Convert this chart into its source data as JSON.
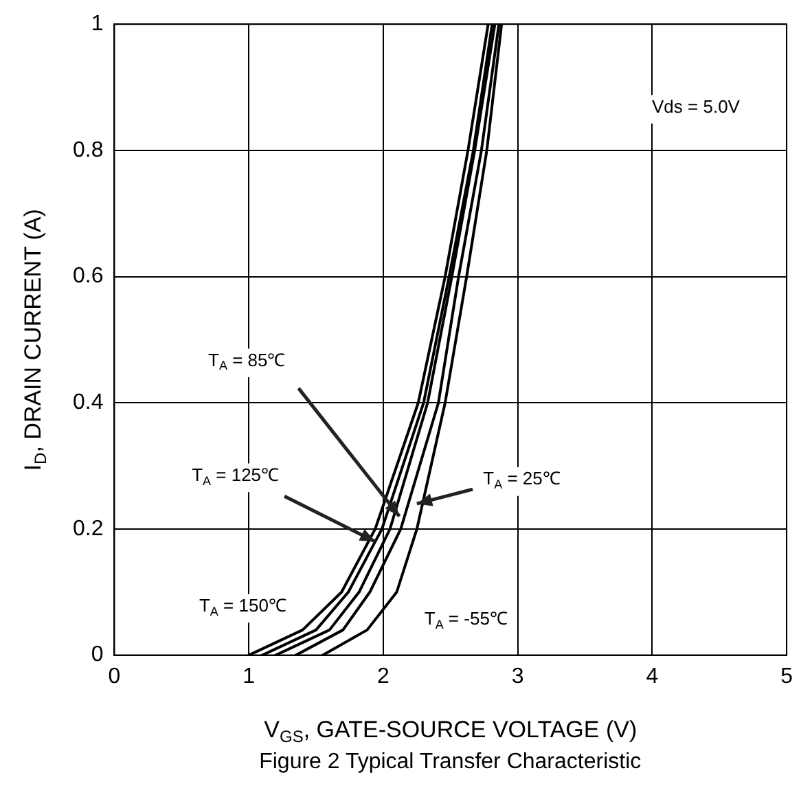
{
  "chart_data": {
    "type": "line",
    "title": "Figure 2 Typical Transfer Characteristic",
    "xlabel": "V$_{GS}$, GATE-SOURCE VOLTAGE (V)",
    "ylabel": "I$_{D}$, DRAIN CURRENT (A)",
    "xlim": [
      0,
      5
    ],
    "xticks": [
      0,
      1,
      2,
      3,
      4,
      5
    ],
    "ylim": [
      0,
      1
    ],
    "yticks": [
      0,
      0.2,
      0.4,
      0.6,
      0.8,
      1
    ],
    "grid": true,
    "legend": false,
    "marker": "none",
    "line_style": "solid",
    "series": [
      {
        "color": "#000000",
        "x": [
          1.0,
          1.4,
          1.69,
          1.94,
          2.26,
          2.46,
          2.63,
          2.78
        ],
        "values": [
          0,
          0.04,
          0.1,
          0.2,
          0.4,
          0.6,
          0.8,
          1
        ]
      },
      {
        "color": "#000000",
        "x": [
          1.1,
          1.5,
          1.74,
          1.99,
          2.3,
          2.49,
          2.67,
          2.81
        ],
        "values": [
          0,
          0.04,
          0.1,
          0.2,
          0.4,
          0.6,
          0.8,
          1
        ]
      },
      {
        "color": "#000000",
        "x": [
          1.2,
          1.6,
          1.82,
          2.05,
          2.33,
          2.51,
          2.68,
          2.83
        ],
        "values": [
          0,
          0.04,
          0.1,
          0.2,
          0.4,
          0.6,
          0.8,
          1
        ]
      },
      {
        "color": "#000000",
        "x": [
          1.35,
          1.7,
          1.9,
          2.13,
          2.41,
          2.56,
          2.73,
          2.86
        ],
        "values": [
          0,
          0.04,
          0.1,
          0.2,
          0.4,
          0.6,
          0.8,
          1
        ]
      },
      {
        "color": "#000000",
        "x": [
          1.55,
          1.88,
          2.1,
          2.25,
          2.46,
          2.62,
          2.77,
          2.88
        ],
        "values": [
          0,
          0.04,
          0.1,
          0.2,
          0.4,
          0.6,
          0.8,
          1
        ]
      }
    ],
    "annotations": [
      "Vds = 5.0V",
      {
        "text": "T$_{A}$ = 85℃",
        "x": 2.12,
        "y": 0.22
      },
      {
        "text": "T$_{A}$ = 125℃",
        "x": 1.94,
        "y": 0.18
      },
      {
        "text": "T$_{A}$ = 25℃",
        "x": 2.25,
        "y": 0.24
      },
      "T$_{A}$ = 150℃",
      "T$_{A}$ = -55℃"
    ]
  }
}
